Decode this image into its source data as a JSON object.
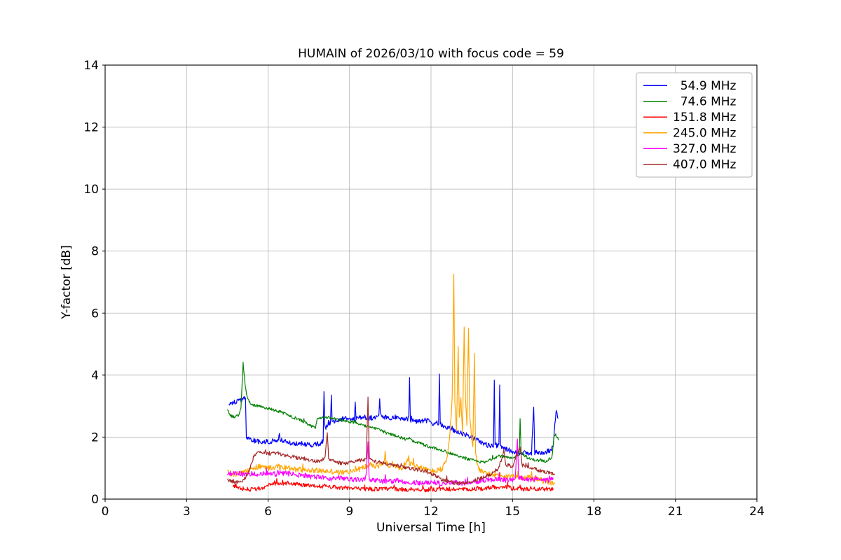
{
  "chart_data": {
    "type": "line",
    "title": "HUMAIN of 2026/03/10 with focus code = 59",
    "xlabel": "Universal Time [h]",
    "ylabel": "Y-factor [dB]",
    "xlim": [
      0,
      24
    ],
    "ylim": [
      0,
      14
    ],
    "xticks": [
      0,
      3,
      6,
      9,
      12,
      15,
      18,
      21,
      24
    ],
    "yticks": [
      0,
      2,
      4,
      6,
      8,
      10,
      12,
      14
    ],
    "grid": true,
    "grid_color": "#b0b0b0",
    "legend_position": "upper right",
    "series": [
      {
        "name": "54.9 MHz",
        "label": "  54.9 MHz",
        "color": "#0000ff",
        "noise": 0.08,
        "points": [
          [
            4.55,
            3.05
          ],
          [
            4.7,
            3.1
          ],
          [
            4.9,
            3.15
          ],
          [
            5.05,
            3.2
          ],
          [
            5.1,
            3.3
          ],
          [
            5.17,
            3.25
          ],
          [
            5.2,
            2.0
          ],
          [
            5.4,
            1.9
          ],
          [
            5.7,
            1.85
          ],
          [
            6.0,
            1.85
          ],
          [
            6.38,
            1.9
          ],
          [
            6.42,
            2.1
          ],
          [
            6.46,
            1.9
          ],
          [
            6.8,
            1.8
          ],
          [
            7.2,
            1.78
          ],
          [
            7.6,
            1.75
          ],
          [
            7.95,
            1.8
          ],
          [
            8.03,
            1.9
          ],
          [
            8.06,
            3.5
          ],
          [
            8.09,
            2.3
          ],
          [
            8.3,
            2.45
          ],
          [
            8.33,
            3.3
          ],
          [
            8.36,
            2.5
          ],
          [
            8.6,
            2.55
          ],
          [
            8.9,
            2.6
          ],
          [
            9.18,
            2.6
          ],
          [
            9.21,
            3.1
          ],
          [
            9.24,
            2.6
          ],
          [
            9.5,
            2.65
          ],
          [
            9.8,
            2.6
          ],
          [
            10.08,
            2.7
          ],
          [
            10.11,
            3.2
          ],
          [
            10.14,
            2.7
          ],
          [
            10.4,
            2.6
          ],
          [
            10.7,
            2.65
          ],
          [
            11.0,
            2.6
          ],
          [
            11.18,
            2.6
          ],
          [
            11.21,
            3.9
          ],
          [
            11.24,
            2.55
          ],
          [
            11.5,
            2.5
          ],
          [
            11.8,
            2.55
          ],
          [
            12.05,
            2.45
          ],
          [
            12.28,
            2.45
          ],
          [
            12.31,
            4.1
          ],
          [
            12.34,
            2.4
          ],
          [
            12.6,
            2.3
          ],
          [
            12.9,
            2.2
          ],
          [
            13.2,
            2.1
          ],
          [
            13.5,
            2.0
          ],
          [
            13.8,
            1.85
          ],
          [
            14.05,
            1.75
          ],
          [
            14.3,
            1.7
          ],
          [
            14.33,
            3.8
          ],
          [
            14.36,
            1.75
          ],
          [
            14.5,
            1.7
          ],
          [
            14.53,
            3.7
          ],
          [
            14.56,
            1.7
          ],
          [
            14.8,
            1.6
          ],
          [
            15.1,
            1.5
          ],
          [
            15.4,
            1.5
          ],
          [
            15.7,
            1.45
          ],
          [
            15.78,
            3.0
          ],
          [
            15.82,
            1.5
          ],
          [
            16.1,
            1.5
          ],
          [
            16.35,
            1.55
          ],
          [
            16.5,
            1.7
          ],
          [
            16.6,
            2.85
          ],
          [
            16.68,
            2.6
          ]
        ]
      },
      {
        "name": "74.6 MHz",
        "label": "  74.6 MHz",
        "color": "#008000",
        "noise": 0.045,
        "points": [
          [
            4.5,
            2.85
          ],
          [
            4.6,
            2.7
          ],
          [
            4.75,
            2.65
          ],
          [
            4.9,
            2.7
          ],
          [
            5.0,
            2.9
          ],
          [
            5.08,
            4.4
          ],
          [
            5.15,
            3.7
          ],
          [
            5.25,
            3.2
          ],
          [
            5.4,
            3.05
          ],
          [
            5.7,
            3.0
          ],
          [
            6.1,
            2.9
          ],
          [
            6.5,
            2.8
          ],
          [
            6.9,
            2.65
          ],
          [
            7.3,
            2.5
          ],
          [
            7.6,
            2.35
          ],
          [
            7.75,
            2.3
          ],
          [
            7.82,
            2.6
          ],
          [
            8.1,
            2.65
          ],
          [
            8.4,
            2.6
          ],
          [
            8.7,
            2.55
          ],
          [
            9.0,
            2.5
          ],
          [
            9.3,
            2.45
          ],
          [
            9.6,
            2.35
          ],
          [
            9.9,
            2.3
          ],
          [
            10.2,
            2.2
          ],
          [
            10.45,
            2.1
          ],
          [
            10.7,
            2.05
          ],
          [
            11.0,
            1.95
          ],
          [
            11.3,
            1.9
          ],
          [
            11.6,
            1.8
          ],
          [
            11.9,
            1.7
          ],
          [
            12.2,
            1.62
          ],
          [
            12.5,
            1.55
          ],
          [
            12.8,
            1.45
          ],
          [
            13.1,
            1.35
          ],
          [
            13.4,
            1.28
          ],
          [
            13.7,
            1.22
          ],
          [
            14.0,
            1.18
          ],
          [
            14.25,
            1.3
          ],
          [
            14.5,
            1.4
          ],
          [
            14.75,
            1.35
          ],
          [
            15.0,
            1.3
          ],
          [
            15.25,
            1.45
          ],
          [
            15.28,
            2.6
          ],
          [
            15.32,
            1.5
          ],
          [
            15.6,
            1.3
          ],
          [
            15.9,
            1.25
          ],
          [
            16.2,
            1.22
          ],
          [
            16.45,
            1.35
          ],
          [
            16.55,
            2.1
          ],
          [
            16.65,
            2.0
          ],
          [
            16.7,
            1.9
          ]
        ]
      },
      {
        "name": "151.8 MHz",
        "label": "151.8 MHz",
        "color": "#ff0000",
        "noise": 0.07,
        "points": [
          [
            4.7,
            0.45
          ],
          [
            5.0,
            0.35
          ],
          [
            5.4,
            0.3
          ],
          [
            5.8,
            0.38
          ],
          [
            6.2,
            0.48
          ],
          [
            6.6,
            0.52
          ],
          [
            7.0,
            0.5
          ],
          [
            7.4,
            0.45
          ],
          [
            7.8,
            0.42
          ],
          [
            8.2,
            0.42
          ],
          [
            8.6,
            0.38
          ],
          [
            9.0,
            0.35
          ],
          [
            9.4,
            0.32
          ],
          [
            9.8,
            0.33
          ],
          [
            10.2,
            0.32
          ],
          [
            10.6,
            0.34
          ],
          [
            11.0,
            0.3
          ],
          [
            11.4,
            0.32
          ],
          [
            11.8,
            0.3
          ],
          [
            12.2,
            0.3
          ],
          [
            12.6,
            0.32
          ],
          [
            13.0,
            0.32
          ],
          [
            13.4,
            0.3
          ],
          [
            13.8,
            0.33
          ],
          [
            14.2,
            0.38
          ],
          [
            14.6,
            0.4
          ],
          [
            15.0,
            0.35
          ],
          [
            15.4,
            0.32
          ],
          [
            15.8,
            0.34
          ],
          [
            16.1,
            0.32
          ],
          [
            16.35,
            0.33
          ],
          [
            16.5,
            0.3
          ]
        ]
      },
      {
        "name": "245.0 MHz",
        "label": "245.0 MHz",
        "color": "#ffa500",
        "noise": 0.09,
        "points": [
          [
            4.5,
            0.85
          ],
          [
            4.8,
            0.8
          ],
          [
            5.1,
            0.85
          ],
          [
            5.4,
            1.0
          ],
          [
            5.7,
            1.05
          ],
          [
            6.0,
            1.0
          ],
          [
            6.35,
            1.05
          ],
          [
            6.7,
            1.0
          ],
          [
            7.1,
            0.95
          ],
          [
            7.5,
            0.95
          ],
          [
            7.9,
            0.9
          ],
          [
            8.3,
            0.9
          ],
          [
            8.7,
            0.85
          ],
          [
            9.1,
            0.9
          ],
          [
            9.45,
            1.0
          ],
          [
            9.75,
            1.1
          ],
          [
            10.0,
            1.05
          ],
          [
            10.28,
            1.2
          ],
          [
            10.31,
            1.5
          ],
          [
            10.34,
            1.15
          ],
          [
            10.6,
            1.05
          ],
          [
            10.9,
            1.0
          ],
          [
            11.15,
            1.25
          ],
          [
            11.18,
            1.4
          ],
          [
            11.21,
            1.15
          ],
          [
            11.5,
            1.05
          ],
          [
            11.8,
            0.95
          ],
          [
            12.1,
            0.9
          ],
          [
            12.4,
            0.95
          ],
          [
            12.6,
            1.3
          ],
          [
            12.7,
            2.2
          ],
          [
            12.78,
            3.2
          ],
          [
            12.84,
            7.3
          ],
          [
            12.88,
            3.0
          ],
          [
            12.94,
            2.2
          ],
          [
            13.0,
            4.9
          ],
          [
            13.04,
            2.6
          ],
          [
            13.1,
            3.2
          ],
          [
            13.16,
            2.1
          ],
          [
            13.22,
            5.5
          ],
          [
            13.27,
            3.2
          ],
          [
            13.32,
            2.4
          ],
          [
            13.38,
            5.5
          ],
          [
            13.43,
            2.6
          ],
          [
            13.48,
            2.1
          ],
          [
            13.54,
            1.7
          ],
          [
            13.6,
            4.6
          ],
          [
            13.64,
            1.5
          ],
          [
            13.75,
            1.0
          ],
          [
            13.9,
            0.85
          ],
          [
            14.2,
            0.78
          ],
          [
            14.5,
            0.8
          ],
          [
            14.8,
            0.72
          ],
          [
            15.1,
            0.75
          ],
          [
            15.4,
            0.7
          ],
          [
            15.7,
            0.68
          ],
          [
            16.0,
            0.62
          ],
          [
            16.3,
            0.56
          ],
          [
            16.55,
            0.5
          ]
        ]
      },
      {
        "name": "327.0 MHz",
        "label": "327.0 MHz",
        "color": "#ff00ff",
        "noise": 0.08,
        "points": [
          [
            4.5,
            0.8
          ],
          [
            4.8,
            0.85
          ],
          [
            5.1,
            0.8
          ],
          [
            5.4,
            0.82
          ],
          [
            5.7,
            0.8
          ],
          [
            6.0,
            0.84
          ],
          [
            6.3,
            0.8
          ],
          [
            6.6,
            0.83
          ],
          [
            7.0,
            0.8
          ],
          [
            7.3,
            0.75
          ],
          [
            7.6,
            0.72
          ],
          [
            8.0,
            0.7
          ],
          [
            8.3,
            0.66
          ],
          [
            8.6,
            0.7
          ],
          [
            9.0,
            0.65
          ],
          [
            9.3,
            0.62
          ],
          [
            9.6,
            0.65
          ],
          [
            9.68,
            1.85
          ],
          [
            9.72,
            0.65
          ],
          [
            10.0,
            0.6
          ],
          [
            10.4,
            0.56
          ],
          [
            10.8,
            0.6
          ],
          [
            11.2,
            0.55
          ],
          [
            11.6,
            0.52
          ],
          [
            12.0,
            0.55
          ],
          [
            12.4,
            0.5
          ],
          [
            12.8,
            0.55
          ],
          [
            13.2,
            0.5
          ],
          [
            13.6,
            0.55
          ],
          [
            14.0,
            0.6
          ],
          [
            14.4,
            0.65
          ],
          [
            14.8,
            0.6
          ],
          [
            15.1,
            0.65
          ],
          [
            15.18,
            1.9
          ],
          [
            15.23,
            0.7
          ],
          [
            15.6,
            0.6
          ],
          [
            16.0,
            0.65
          ],
          [
            16.3,
            0.6
          ],
          [
            16.5,
            0.68
          ]
        ]
      },
      {
        "name": "407.0 MHz",
        "label": "407.0 MHz",
        "color": "#a52a2a",
        "noise": 0.06,
        "points": [
          [
            4.5,
            0.6
          ],
          [
            4.8,
            0.55
          ],
          [
            5.1,
            0.6
          ],
          [
            5.3,
            0.9
          ],
          [
            5.5,
            1.45
          ],
          [
            5.75,
            1.5
          ],
          [
            6.05,
            1.45
          ],
          [
            6.35,
            1.5
          ],
          [
            6.65,
            1.4
          ],
          [
            7.0,
            1.35
          ],
          [
            7.3,
            1.3
          ],
          [
            7.6,
            1.25
          ],
          [
            7.9,
            1.2
          ],
          [
            8.1,
            1.35
          ],
          [
            8.18,
            2.2
          ],
          [
            8.23,
            1.3
          ],
          [
            8.5,
            1.2
          ],
          [
            8.8,
            1.15
          ],
          [
            9.1,
            1.2
          ],
          [
            9.4,
            1.25
          ],
          [
            9.62,
            1.3
          ],
          [
            9.68,
            3.3
          ],
          [
            9.73,
            1.3
          ],
          [
            10.0,
            1.2
          ],
          [
            10.3,
            1.15
          ],
          [
            10.6,
            1.1
          ],
          [
            10.9,
            1.05
          ],
          [
            11.2,
            1.0
          ],
          [
            11.5,
            0.95
          ],
          [
            11.8,
            0.9
          ],
          [
            12.1,
            0.8
          ],
          [
            12.4,
            0.62
          ],
          [
            12.7,
            0.55
          ],
          [
            13.0,
            0.5
          ],
          [
            13.3,
            0.55
          ],
          [
            13.6,
            0.6
          ],
          [
            13.9,
            0.7
          ],
          [
            14.2,
            0.8
          ],
          [
            14.5,
            1.0
          ],
          [
            14.68,
            1.6
          ],
          [
            14.75,
            1.1
          ],
          [
            15.0,
            1.05
          ],
          [
            15.28,
            1.7
          ],
          [
            15.35,
            1.1
          ],
          [
            15.7,
            1.0
          ],
          [
            16.0,
            0.92
          ],
          [
            16.3,
            0.85
          ],
          [
            16.55,
            0.82
          ]
        ]
      }
    ]
  }
}
